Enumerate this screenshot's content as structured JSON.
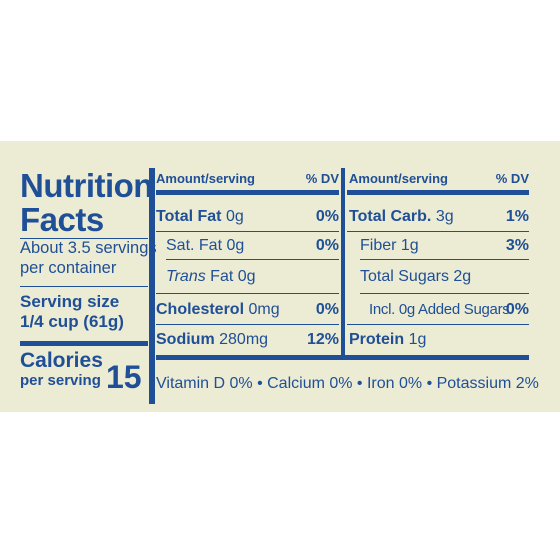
{
  "label": {
    "title_line1": "Nutrition",
    "title_line2": "Facts",
    "servings_line1": "About 3.5 servings",
    "servings_line2": "per container",
    "serving_size_label": "Serving size",
    "serving_size_value": "1/4 cup (61g)",
    "calories_label": "Calories",
    "calories_sub": "per serving",
    "calories_value": "15",
    "left_table": {
      "amount_header": "Amount/serving",
      "dv_header": "% DV",
      "rows": [
        {
          "name": "Total Fat",
          "amount": "0g",
          "dv": "0%"
        },
        {
          "name": "Sat. Fat",
          "amount": "0g",
          "dv": "0%"
        },
        {
          "name": "Trans",
          "name_suffix": "Fat",
          "amount": "0g",
          "dv": ""
        },
        {
          "name": "Cholesterol",
          "amount": "0mg",
          "dv": "0%"
        },
        {
          "name": "Sodium",
          "amount": "280mg",
          "dv": "12%"
        }
      ]
    },
    "right_table": {
      "amount_header": "Amount/serving",
      "dv_header": "% DV",
      "rows": [
        {
          "name": "Total Carb.",
          "amount": "3g",
          "dv": "1%"
        },
        {
          "name": "Fiber",
          "amount": "1g",
          "dv": "3%"
        },
        {
          "name": "Total Sugars",
          "amount": "2g",
          "dv": ""
        },
        {
          "name": "Incl. 0g Added Sugars",
          "amount": "",
          "dv": "0%"
        },
        {
          "name": "Protein",
          "amount": "1g",
          "dv": ""
        }
      ]
    },
    "footer": "Vitamin D 0% • Calcium 0% • Iron 0% • Potassium 2%",
    "colors": {
      "ink": "#1f4f97",
      "background": "#ecebd3"
    }
  }
}
